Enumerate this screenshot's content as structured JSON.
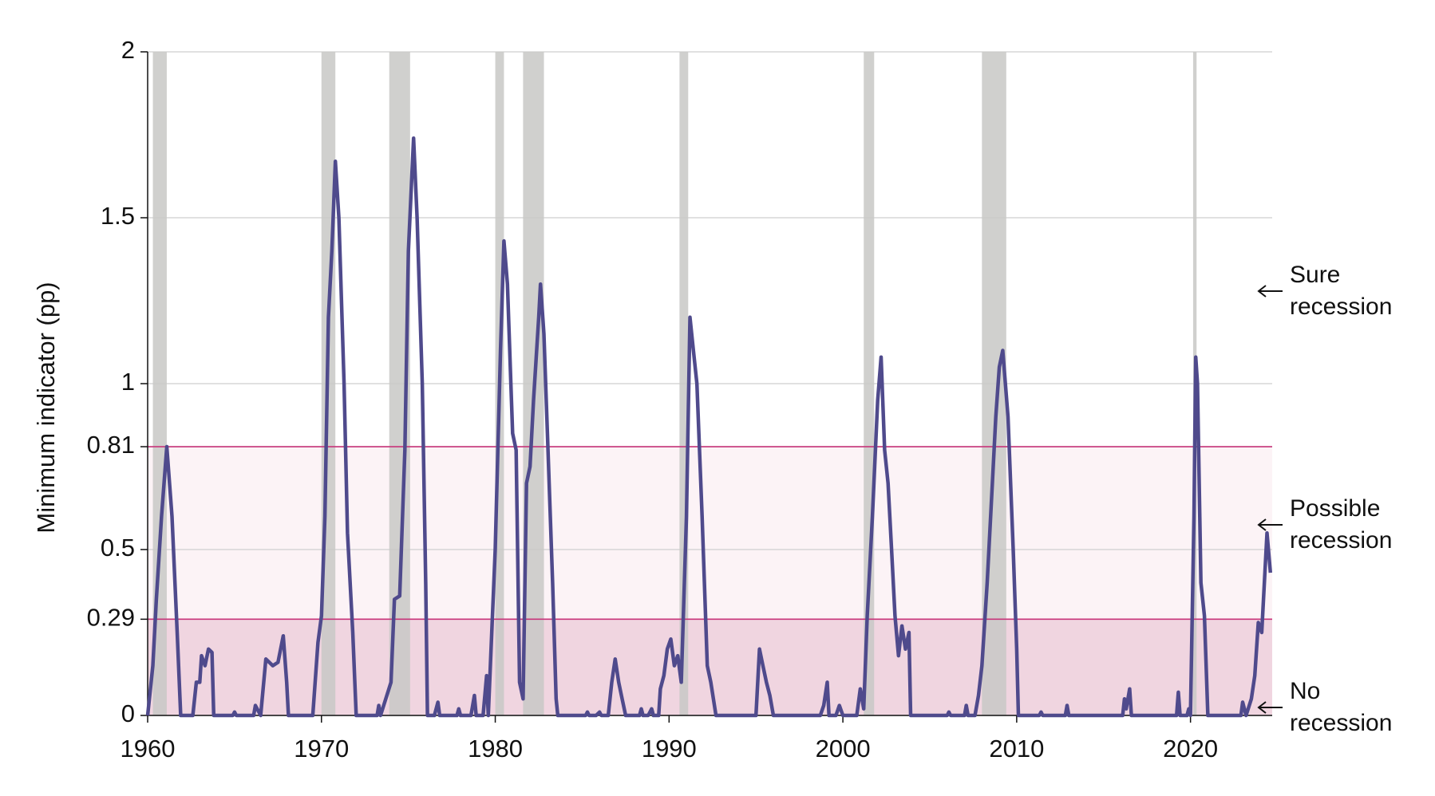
{
  "chart_data": {
    "type": "line",
    "ylabel": "Minimum indicator (pp)",
    "xlim": [
      1960,
      2024.7
    ],
    "xticks": [
      1960,
      1970,
      1980,
      1990,
      2000,
      2010,
      2020
    ],
    "ylim": [
      0,
      2
    ],
    "yticks": [
      0,
      0.29,
      0.5,
      0.81,
      1,
      1.5,
      2
    ],
    "grid": true,
    "color": "#4f4a8c",
    "threshold_color": "#c8347a",
    "thresholds": [
      0.29,
      0.81
    ],
    "zone_colors": [
      "#f0d5e0",
      "#fcf3f6"
    ],
    "recession_color": "#c8c8c6",
    "recessions": [
      [
        1960.3,
        1961.1
      ],
      [
        1970.0,
        1970.8
      ],
      [
        1973.9,
        1975.1
      ],
      [
        1980.0,
        1980.5
      ],
      [
        1981.6,
        1982.8
      ],
      [
        1990.6,
        1991.1
      ],
      [
        2001.2,
        2001.8
      ],
      [
        2008.0,
        2009.4
      ],
      [
        2020.15,
        2020.35
      ]
    ],
    "annotations": [
      "Sure recession",
      "Possible recession",
      "No recession"
    ],
    "x": [
      1960.0,
      1960.3,
      1960.5,
      1960.8,
      1961.1,
      1961.4,
      1961.7,
      1961.9,
      1962.6,
      1962.8,
      1963.0,
      1963.1,
      1963.3,
      1963.5,
      1963.7,
      1963.8,
      1964.9,
      1965.0,
      1965.1,
      1966.1,
      1966.2,
      1966.5,
      1966.8,
      1967.2,
      1967.5,
      1967.8,
      1968.0,
      1968.1,
      1969.5,
      1969.8,
      1970.0,
      1970.2,
      1970.4,
      1970.6,
      1970.8,
      1971.0,
      1971.3,
      1971.5,
      1971.8,
      1972.0,
      1973.2,
      1973.3,
      1973.4,
      1974.0,
      1974.2,
      1974.5,
      1974.8,
      1975.0,
      1975.3,
      1975.5,
      1975.8,
      1976.0,
      1976.1,
      1976.5,
      1976.7,
      1976.8,
      1977.8,
      1977.9,
      1978.0,
      1978.6,
      1978.8,
      1978.9,
      1979.3,
      1979.5,
      1979.6,
      1980.0,
      1980.3,
      1980.5,
      1980.7,
      1980.9,
      1981.0,
      1981.2,
      1981.4,
      1981.6,
      1981.8,
      1982.0,
      1982.2,
      1982.5,
      1982.6,
      1982.8,
      1983.0,
      1983.3,
      1983.5,
      1983.6,
      1985.2,
      1985.3,
      1985.4,
      1985.8,
      1986.0,
      1986.1,
      1986.5,
      1986.7,
      1986.9,
      1987.1,
      1987.3,
      1987.5,
      1988.3,
      1988.4,
      1988.5,
      1988.8,
      1989.0,
      1989.1,
      1989.4,
      1989.5,
      1989.7,
      1989.9,
      1990.1,
      1990.3,
      1990.5,
      1990.7,
      1991.0,
      1991.2,
      1991.4,
      1991.6,
      1991.9,
      1992.2,
      1992.4,
      1992.7,
      1995.0,
      1995.2,
      1995.4,
      1995.6,
      1995.8,
      1996.0,
      1998.7,
      1998.9,
      1999.1,
      1999.2,
      1999.6,
      1999.8,
      2000.0,
      2000.8,
      2001.0,
      2001.2,
      2001.4,
      2001.7,
      2002.0,
      2002.2,
      2002.4,
      2002.6,
      2002.8,
      2003.0,
      2003.2,
      2003.4,
      2003.6,
      2003.8,
      2003.9,
      2006.0,
      2006.1,
      2006.2,
      2007.0,
      2007.1,
      2007.2,
      2007.6,
      2007.8,
      2008.0,
      2008.3,
      2008.6,
      2008.8,
      2009.0,
      2009.2,
      2009.5,
      2009.8,
      2010.0,
      2010.1,
      2011.3,
      2011.4,
      2011.5,
      2012.8,
      2012.9,
      2013.0,
      2016.1,
      2016.2,
      2016.3,
      2016.5,
      2016.6,
      2019.2,
      2019.3,
      2019.4,
      2019.8,
      2019.9,
      2020.0,
      2020.2,
      2020.3,
      2020.4,
      2020.6,
      2020.8,
      2021.0,
      2022.9,
      2023.0,
      2023.2,
      2023.5,
      2023.7,
      2023.9,
      2024.1,
      2024.2,
      2024.4,
      2024.6
    ],
    "values": [
      0,
      0.15,
      0.35,
      0.6,
      0.81,
      0.6,
      0.25,
      0,
      0,
      0.1,
      0.1,
      0.18,
      0.15,
      0.2,
      0.19,
      0,
      0,
      0.01,
      0,
      0,
      0.03,
      0,
      0.17,
      0.15,
      0.16,
      0.24,
      0.1,
      0,
      0,
      0.22,
      0.3,
      0.6,
      1.2,
      1.4,
      1.67,
      1.5,
      1.0,
      0.55,
      0.25,
      0,
      0,
      0.03,
      0,
      0.1,
      0.35,
      0.36,
      0.8,
      1.4,
      1.74,
      1.5,
      1.0,
      0.4,
      0,
      0,
      0.04,
      0,
      0,
      0.02,
      0,
      0,
      0.06,
      0,
      0,
      0.12,
      0,
      0.5,
      1.1,
      1.43,
      1.3,
      1.0,
      0.85,
      0.8,
      0.1,
      0.05,
      0.7,
      0.75,
      0.95,
      1.2,
      1.3,
      1.15,
      0.85,
      0.4,
      0.05,
      0,
      0,
      0.01,
      0,
      0,
      0.01,
      0,
      0,
      0.1,
      0.17,
      0.1,
      0.05,
      0,
      0,
      0.02,
      0,
      0,
      0.02,
      0,
      0,
      0.08,
      0.12,
      0.2,
      0.23,
      0.15,
      0.18,
      0.1,
      0.6,
      1.2,
      1.1,
      1.0,
      0.6,
      0.15,
      0.1,
      0,
      0,
      0.2,
      0.15,
      0.1,
      0.06,
      0,
      0,
      0.03,
      0.1,
      0,
      0,
      0.03,
      0,
      0,
      0.08,
      0.02,
      0.3,
      0.6,
      0.95,
      1.08,
      0.8,
      0.7,
      0.5,
      0.3,
      0.18,
      0.27,
      0.2,
      0.25,
      0,
      0,
      0.01,
      0,
      0,
      0.03,
      0,
      0,
      0.06,
      0.15,
      0.4,
      0.7,
      0.9,
      1.05,
      1.1,
      0.9,
      0.5,
      0.2,
      0,
      0,
      0.01,
      0,
      0,
      0.03,
      0,
      0,
      0.05,
      0.02,
      0.08,
      0,
      0,
      0.07,
      0,
      0,
      0.02,
      0,
      0.6,
      1.08,
      1.0,
      0.4,
      0.3,
      0,
      0,
      0.04,
      0,
      0.05,
      0.12,
      0.28,
      0.25,
      0.35,
      0.55,
      0.43
    ]
  }
}
